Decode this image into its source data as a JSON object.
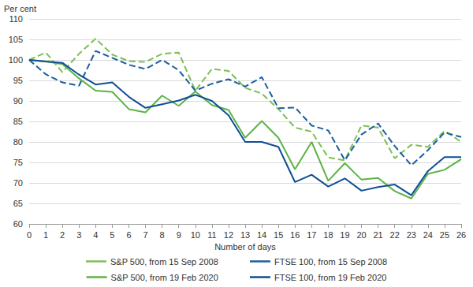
{
  "chart_data": {
    "type": "line",
    "y_label": "Per cent",
    "x_label": "Number of days",
    "x": [
      0,
      1,
      2,
      3,
      4,
      5,
      6,
      7,
      8,
      9,
      10,
      11,
      12,
      13,
      14,
      15,
      16,
      17,
      18,
      19,
      20,
      21,
      22,
      23,
      24,
      25,
      26
    ],
    "xlim": [
      0,
      26
    ],
    "xticks": [
      0,
      1,
      2,
      3,
      4,
      5,
      6,
      7,
      8,
      9,
      10,
      11,
      12,
      13,
      14,
      15,
      16,
      17,
      18,
      19,
      20,
      21,
      22,
      23,
      24,
      25,
      26
    ],
    "ylim": [
      60,
      110
    ],
    "yticks": [
      60,
      65,
      70,
      75,
      80,
      85,
      90,
      95,
      100,
      105,
      110
    ],
    "grid": true,
    "legend": "bottom",
    "marker": "none",
    "series": [
      {
        "name": "S&P 500, from 15 Sep 2008",
        "color": "#7dbf55",
        "line_style": "dashed",
        "values": [
          100,
          101.8,
          97,
          101.5,
          105.2,
          101.3,
          99.7,
          99.5,
          101.5,
          101.8,
          92.5,
          97.8,
          97.3,
          93.2,
          91.8,
          88,
          83.5,
          82.5,
          76.2,
          75.5,
          84,
          83.5,
          76,
          79.3,
          78.8,
          82.7,
          80
        ]
      },
      {
        "name": "FTSE 100, from 15 Sep 2008",
        "color": "#1a5e9e",
        "line_style": "dashed",
        "values": [
          100,
          96.5,
          94.5,
          93.7,
          102.2,
          100.5,
          98.8,
          97.8,
          100,
          97.5,
          92.5,
          94.2,
          95.3,
          93.5,
          95.8,
          88.2,
          88.4,
          84,
          82.8,
          75.5,
          81.8,
          84.5,
          79,
          74.3,
          78,
          82.3,
          81.2
        ]
      },
      {
        "name": "S&P 500, from 19 Feb 2020",
        "color": "#5cb346",
        "line_style": "solid",
        "values": [
          100,
          99.6,
          99,
          95.5,
          92.5,
          92.2,
          88,
          87.2,
          91.3,
          88.8,
          92.3,
          89,
          87.8,
          81,
          85.1,
          81,
          73.3,
          80,
          70.5,
          74.8,
          70.8,
          71.2,
          68,
          66.2,
          72.2,
          73.2,
          75.8
        ]
      },
      {
        "name": "FTSE 100, from 19 Feb 2020",
        "color": "#0e4f94",
        "line_style": "solid",
        "values": [
          100,
          99.6,
          99.3,
          96.4,
          94,
          94.5,
          91,
          88.3,
          89.2,
          90.1,
          91.5,
          90,
          86.5,
          80,
          80,
          78.8,
          70.2,
          72,
          69.1,
          71.1,
          68.1,
          69,
          69.6,
          67,
          72.9,
          76.3,
          76.3
        ]
      }
    ]
  }
}
